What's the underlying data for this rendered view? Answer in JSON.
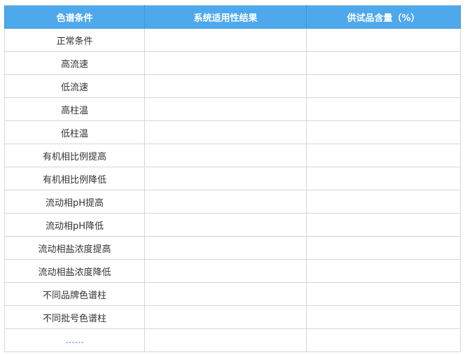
{
  "table": {
    "headers": [
      "色谱条件",
      "系统适用性结果",
      "供试品含量（%）"
    ],
    "header_color": "#4ea8ec",
    "rows": [
      [
        "正常条件",
        "",
        ""
      ],
      [
        "高流速",
        "",
        ""
      ],
      [
        "低流速",
        "",
        ""
      ],
      [
        "高柱温",
        "",
        ""
      ],
      [
        "低柱温",
        "",
        ""
      ],
      [
        "有机相比例提高",
        "",
        ""
      ],
      [
        "有机相比例降低",
        "",
        ""
      ],
      [
        "流动相pH提高",
        "",
        ""
      ],
      [
        "流动相pH降低",
        "",
        ""
      ],
      [
        "流动相盐浓度提高",
        "",
        ""
      ],
      [
        "流动相盐浓度降低",
        "",
        ""
      ],
      [
        "不同品牌色谱柱",
        "",
        ""
      ],
      [
        "不同批号色谱柱",
        "",
        ""
      ],
      [
        "……",
        "",
        ""
      ]
    ]
  }
}
